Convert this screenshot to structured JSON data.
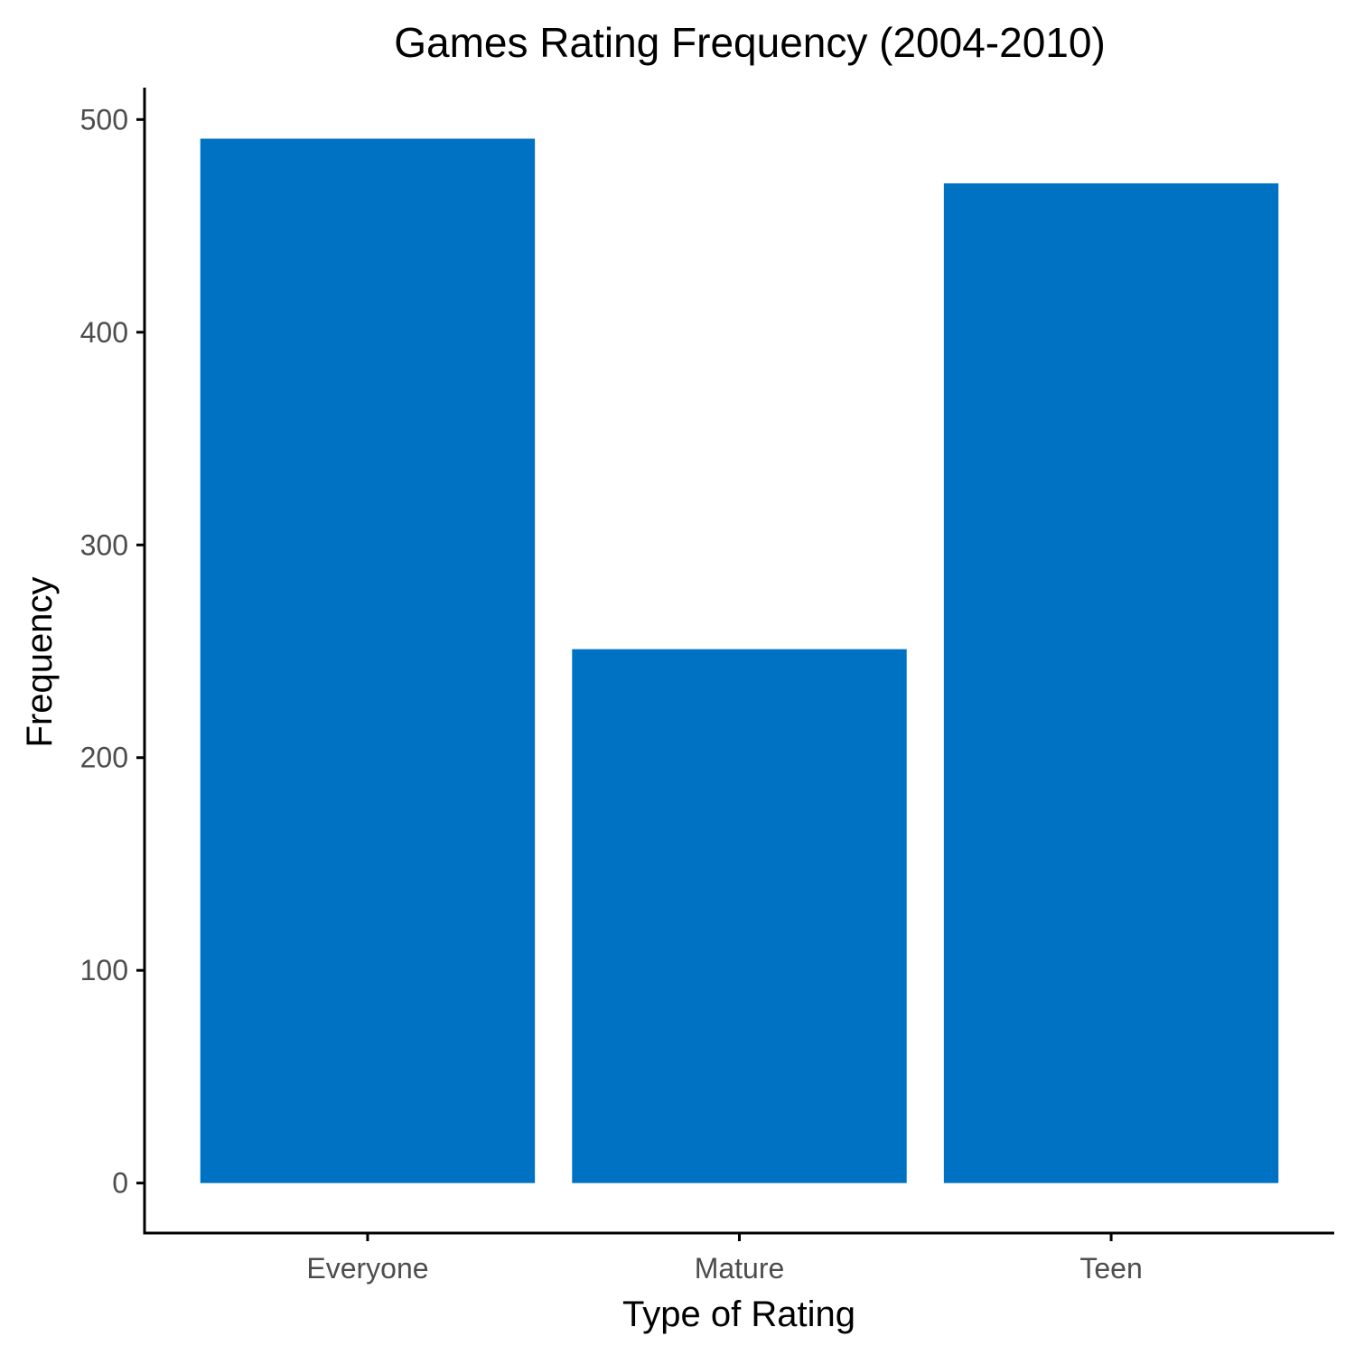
{
  "chart_data": {
    "type": "bar",
    "title": "Games Rating Frequency (2004-2010)",
    "xlabel": "Type of Rating",
    "ylabel": "Frequency",
    "categories": [
      "Everyone",
      "Mature",
      "Teen"
    ],
    "values": [
      491,
      251,
      470
    ],
    "ylim": [
      -23.5,
      515
    ],
    "yticks": [
      0,
      100,
      200,
      300,
      400,
      500
    ],
    "grid": false,
    "bar_color": "#0072C3"
  }
}
